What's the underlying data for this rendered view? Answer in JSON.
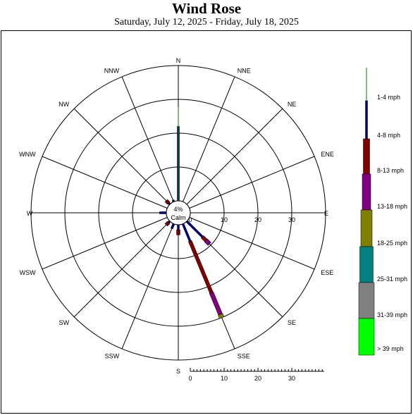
{
  "title": "Wind Rose",
  "subtitle": "Saturday, July 12, 2025 - Friday, July 18, 2025",
  "chart_data": {
    "type": "wind-rose",
    "title": "Wind Rose",
    "subtitle": "Saturday, July 12, 2025 - Friday, July 18, 2025",
    "calm_percent": "4%",
    "calm_label": "Calm",
    "directions": [
      "N",
      "NNE",
      "NE",
      "ENE",
      "E",
      "ESE",
      "SE",
      "SSE",
      "S",
      "SSW",
      "SW",
      "WSW",
      "W",
      "WNW",
      "NW",
      "NNW"
    ],
    "rings": [
      "0",
      "10",
      "20",
      "30"
    ],
    "scale_ticks": [
      "0",
      "10",
      "20",
      "30"
    ],
    "speed_bins": [
      {
        "label": "1-4 mph",
        "color": "#008000"
      },
      {
        "label": "4-8 mph",
        "color": "#000080"
      },
      {
        "label": "8-13 mph",
        "color": "#800000"
      },
      {
        "label": "13-18 mph",
        "color": "#800080"
      },
      {
        "label": "18-25 mph",
        "color": "#808000"
      },
      {
        "label": "25-31 mph",
        "color": "#008080"
      },
      {
        "label": "31-39 mph",
        "color": "#808080"
      },
      {
        "label": "> 39 mph",
        "color": "#00ff00"
      }
    ],
    "values_percent": {
      "N": [
        0,
        22,
        0,
        0,
        0,
        0,
        0,
        0
      ],
      "NNE": [
        0,
        0,
        0,
        0,
        0,
        0,
        0,
        0
      ],
      "NE": [
        0,
        0,
        0,
        0,
        0,
        0,
        0,
        0
      ],
      "ENE": [
        0,
        0,
        0,
        0,
        0,
        0,
        0,
        0
      ],
      "E": [
        0,
        0,
        0,
        0,
        0,
        0,
        0,
        0
      ],
      "ESE": [
        0,
        0,
        0,
        0,
        0,
        0,
        0,
        0
      ],
      "SE": [
        0,
        6.5,
        1.5,
        1.5,
        0,
        0,
        0,
        0
      ],
      "SSE": [
        0,
        5.5,
        16.5,
        7,
        1,
        0,
        0,
        0
      ],
      "S": [
        0,
        1.5,
        1.5,
        0,
        0,
        0,
        0,
        0
      ],
      "SSW": [
        0,
        1.5,
        0,
        0,
        0,
        0,
        0,
        0
      ],
      "SW": [
        0,
        0.5,
        1,
        0,
        0,
        0,
        0,
        0
      ],
      "WSW": [
        0,
        0,
        0,
        0,
        0,
        0,
        0,
        0
      ],
      "W": [
        0,
        2,
        0,
        0,
        0,
        0,
        0,
        0
      ],
      "WNW": [
        0,
        0,
        0,
        0,
        0,
        0,
        0,
        0
      ],
      "NW": [
        0,
        0.5,
        1,
        0,
        0,
        0,
        0,
        0
      ],
      "NNW": [
        0,
        0.5,
        0,
        0,
        0,
        0,
        0,
        0
      ]
    },
    "max_percent": 40
  }
}
